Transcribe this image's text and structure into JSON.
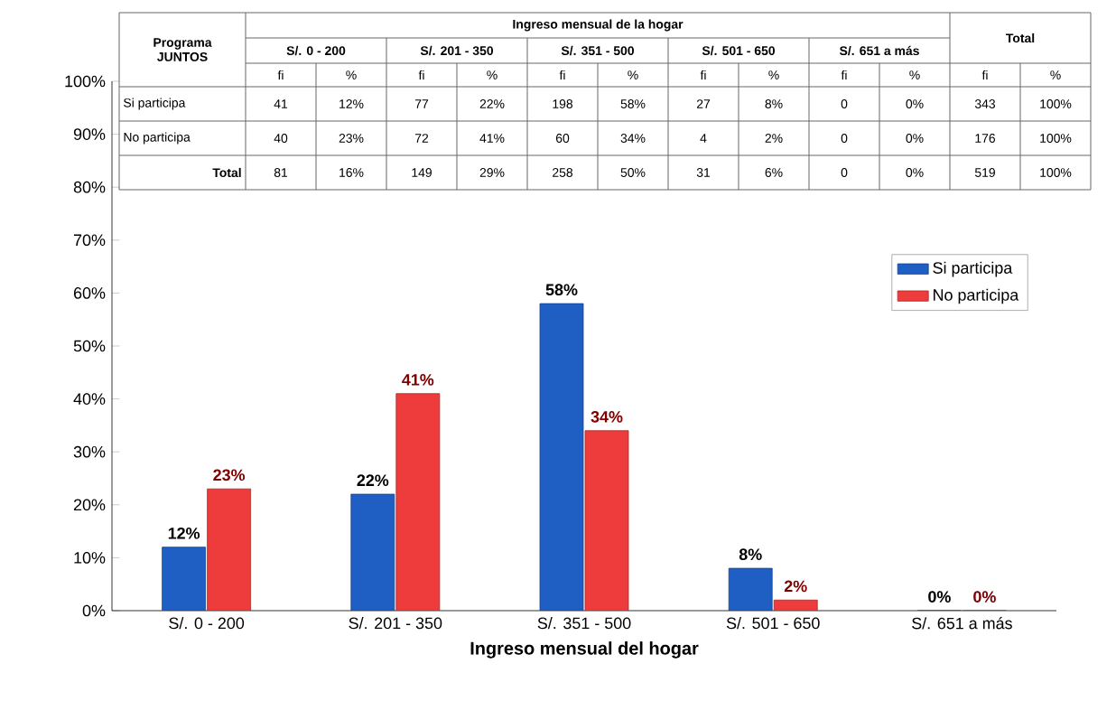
{
  "chart_data": {
    "type": "bar",
    "xlabel": "Ingreso mensual del hogar",
    "categories": [
      "S/. 0 - 200",
      "S/. 201 - 350",
      "S/. 351 - 500",
      "S/. 501 - 650",
      "S/. 651 a más"
    ],
    "series": [
      {
        "name": "Si participa",
        "color": "#1f5fc4",
        "values": [
          12,
          22,
          58,
          8,
          0
        ],
        "value_labels": [
          "12%",
          "22%",
          "58%",
          "8%",
          "0%"
        ]
      },
      {
        "name": "No participa",
        "color": "#ee3b3b",
        "values": [
          23,
          41,
          34,
          2,
          0
        ],
        "value_labels": [
          "23%",
          "41%",
          "34%",
          "2%",
          "0%"
        ]
      }
    ],
    "ylim": [
      0,
      100
    ],
    "yticks": [
      {
        "value": 0,
        "label": "0%"
      },
      {
        "value": 10,
        "label": "10%"
      },
      {
        "value": 20,
        "label": "20%"
      },
      {
        "value": 30,
        "label": "30%"
      },
      {
        "value": 40,
        "label": "40%"
      },
      {
        "value": 50,
        "label": "50%"
      },
      {
        "value": 60,
        "label": "60%"
      },
      {
        "value": 70,
        "label": "70%"
      },
      {
        "value": 80,
        "label": "80%"
      },
      {
        "value": 90,
        "label": "90%"
      },
      {
        "value": 100,
        "label": "100%"
      }
    ],
    "grid": false,
    "legend": "right",
    "annotations": [
      "Programa JUNTOS",
      "Ingreso mensual de la hogar",
      "Total",
      "fi",
      "%",
      "41",
      "12%",
      "77",
      "22%",
      "198",
      "58%",
      "27",
      "8%",
      "0",
      "0%",
      "343",
      "100%",
      "40",
      "23%",
      "72",
      "41%",
      "60",
      "34%",
      "4",
      "2%",
      "0",
      "0%",
      "176",
      "100%",
      "81",
      "16%",
      "149",
      "29%",
      "258",
      "50%",
      "31",
      "6%",
      "0",
      "0%",
      "519",
      "100%",
      "S/. 0 - 200",
      "S/. 201 - 350",
      "S/. 351 - 500",
      "S/. 501 - 650",
      "S/. 651 a más",
      "Si participa",
      "No participa"
    ]
  }
}
